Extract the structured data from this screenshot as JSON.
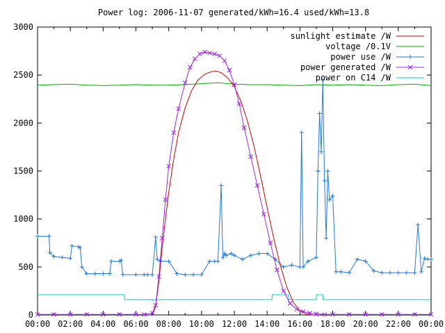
{
  "chart_data": {
    "type": "line",
    "title": "Power log: 2006-11-07 generated/kWh=16.4 used/kWh=13.8",
    "xlabel": "",
    "ylabel": "",
    "xlim": [
      0,
      24
    ],
    "ylim": [
      0,
      3000
    ],
    "x_ticks": [
      "00:00",
      "02:00",
      "04:00",
      "06:00",
      "08:00",
      "10:00",
      "12:00",
      "14:00",
      "16:00",
      "18:00",
      "20:00",
      "22:00",
      "00:00"
    ],
    "y_ticks": [
      "0",
      "500",
      "1000",
      "1500",
      "2000",
      "2500",
      "3000"
    ],
    "grid": false,
    "legend_position": "top-right",
    "series": [
      {
        "name": "sunlight estimate /W",
        "color": "#cc0000",
        "style": "line",
        "x": [
          7.0,
          7.2,
          7.4,
          7.6,
          7.8,
          8.0,
          8.3,
          8.6,
          9.0,
          9.4,
          9.8,
          10.2,
          10.6,
          10.9,
          11.2,
          11.6,
          12.0,
          12.4,
          12.8,
          13.2,
          13.6,
          14.0,
          14.4,
          14.8,
          15.2,
          15.6,
          16.0,
          16.4,
          16.8,
          17.2
        ],
        "values": [
          0,
          90,
          350,
          700,
          1000,
          1280,
          1620,
          1900,
          2160,
          2340,
          2450,
          2510,
          2535,
          2540,
          2525,
          2470,
          2380,
          2230,
          2020,
          1760,
          1450,
          1120,
          800,
          520,
          290,
          130,
          45,
          10,
          0,
          0
        ]
      },
      {
        "name": "voltage /0.1V",
        "color": "#00aa00",
        "style": "line",
        "x": [
          0,
          1,
          2,
          3,
          4,
          5,
          6,
          7,
          8,
          9,
          10,
          11,
          12,
          13,
          14,
          15,
          16,
          17,
          18,
          19,
          20,
          21,
          22,
          23,
          24
        ],
        "values": [
          2395,
          2400,
          2405,
          2395,
          2390,
          2395,
          2400,
          2395,
          2395,
          2400,
          2410,
          2420,
          2405,
          2400,
          2400,
          2395,
          2390,
          2400,
          2395,
          2400,
          2395,
          2390,
          2400,
          2405,
          2390
        ]
      },
      {
        "name": "power use /W",
        "color": "#1f77e0",
        "style": "line+points",
        "x": [
          0.0,
          0.7,
          0.75,
          1.0,
          1.5,
          2.0,
          2.1,
          2.5,
          2.6,
          2.7,
          3.0,
          3.5,
          4.0,
          4.4,
          4.5,
          5.0,
          5.1,
          5.2,
          6.0,
          6.5,
          6.7,
          7.0,
          7.2,
          7.3,
          7.5,
          8.0,
          8.5,
          9.0,
          9.5,
          10.0,
          10.5,
          10.8,
          11.0,
          11.2,
          11.3,
          11.4,
          11.5,
          11.8,
          12.0,
          12.5,
          13.0,
          13.5,
          14.0,
          14.5,
          15.0,
          15.5,
          16.0,
          16.1,
          16.2,
          16.5,
          17.0,
          17.1,
          17.2,
          17.3,
          17.4,
          17.5,
          17.6,
          17.7,
          17.8,
          18.0,
          18.2,
          18.5,
          19.0,
          19.5,
          20.0,
          20.5,
          21.0,
          21.5,
          22.0,
          22.5,
          23.0,
          23.2,
          23.4,
          23.6,
          23.8,
          24.0
        ],
        "values": [
          820,
          820,
          650,
          610,
          600,
          590,
          720,
          710,
          700,
          500,
          430,
          430,
          430,
          430,
          560,
          560,
          570,
          420,
          420,
          420,
          420,
          420,
          810,
          580,
          560,
          560,
          430,
          420,
          420,
          420,
          560,
          560,
          560,
          1350,
          600,
          640,
          620,
          640,
          620,
          580,
          620,
          640,
          640,
          580,
          500,
          520,
          500,
          1900,
          500,
          560,
          600,
          1500,
          2100,
          1700,
          2450,
          1400,
          800,
          1500,
          1200,
          1240,
          450,
          450,
          440,
          580,
          560,
          460,
          440,
          440,
          440,
          440,
          440,
          940,
          450,
          590,
          580,
          580
        ]
      },
      {
        "name": "power generated /W",
        "color": "#a020f0",
        "style": "line+points",
        "x": [
          0,
          1,
          2,
          3,
          4,
          5,
          6,
          6.5,
          7.0,
          7.2,
          7.4,
          7.6,
          7.8,
          8.0,
          8.3,
          8.6,
          9.0,
          9.3,
          9.6,
          9.9,
          10.2,
          10.5,
          10.8,
          11.1,
          11.4,
          11.7,
          12.0,
          12.3,
          12.6,
          13.0,
          13.4,
          13.8,
          14.2,
          14.6,
          15.0,
          15.4,
          15.8,
          16.2,
          16.6,
          17.0,
          17.5,
          18.0,
          19,
          20,
          21,
          22,
          23,
          24
        ],
        "values": [
          5,
          5,
          5,
          5,
          5,
          5,
          5,
          5,
          20,
          100,
          400,
          800,
          1200,
          1550,
          1900,
          2150,
          2420,
          2580,
          2670,
          2720,
          2740,
          2730,
          2720,
          2700,
          2650,
          2550,
          2400,
          2200,
          1950,
          1650,
          1350,
          1050,
          750,
          470,
          250,
          120,
          60,
          35,
          20,
          10,
          5,
          5,
          5,
          5,
          5,
          5,
          5,
          5
        ]
      },
      {
        "name": "power on C14 /W",
        "color": "#00cccc",
        "style": "line",
        "x": [
          0,
          5.3,
          5.31,
          7.0,
          7.01,
          7.05,
          11.5,
          11.6,
          14.3,
          14.31,
          15.3,
          15.31,
          16.2,
          17.0,
          17.01,
          17.4,
          17.41,
          24
        ],
        "values": [
          210,
          210,
          160,
          160,
          150,
          160,
          160,
          160,
          160,
          210,
          210,
          160,
          160,
          160,
          210,
          210,
          160,
          160
        ]
      }
    ]
  }
}
